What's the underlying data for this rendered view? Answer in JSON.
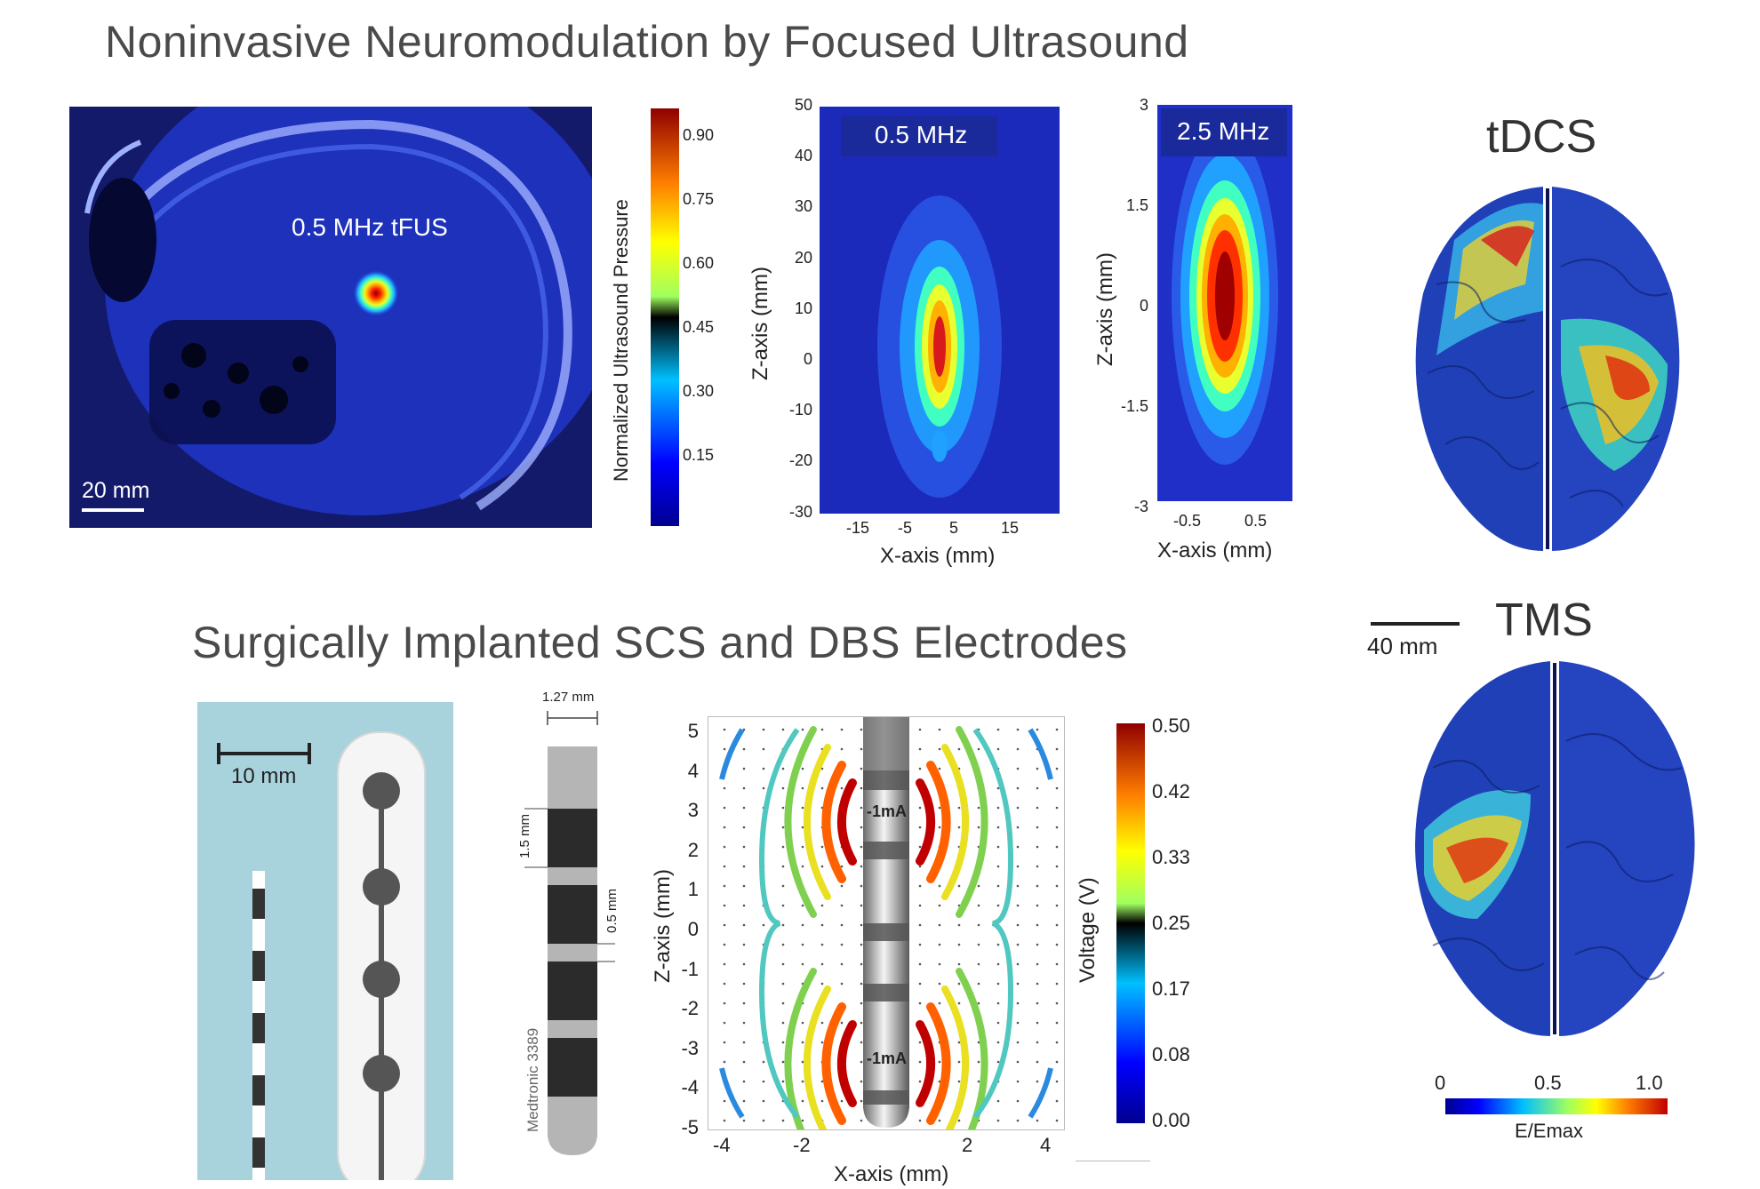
{
  "headings": {
    "top": "Noninvasive Neuromodulation by Focused Ultrasound",
    "bottom": "Surgically Implanted SCS and DBS Electrodes"
  },
  "ct_panel": {
    "label": "0.5 MHz tFUS",
    "scale": "20 mm"
  },
  "colorbar_ultrasound": {
    "label": "Normalized Ultrasound Pressure",
    "ticks": [
      "0.90",
      "0.75",
      "0.60",
      "0.45",
      "0.30",
      "0.15"
    ]
  },
  "panel_05mhz": {
    "label": "0.5 MHz",
    "yticks": [
      "50",
      "40",
      "30",
      "20",
      "10",
      "0",
      "-10",
      "-20",
      "-30"
    ],
    "xticks": [
      "-15",
      "-5",
      "5",
      "15"
    ],
    "xlabel": "X-axis (mm)",
    "ylabel": "Z-axis (mm)"
  },
  "panel_25mhz": {
    "label": "2.5 MHz",
    "yticks": [
      "3",
      "1.5",
      "0",
      "-1.5",
      "-3"
    ],
    "xticks": [
      "-0.5",
      "0.5"
    ],
    "xlabel": "X-axis (mm)",
    "ylabel": "Z-axis (mm)"
  },
  "brains": {
    "tdcs": "tDCS",
    "tms": "TMS",
    "scale": "40 mm",
    "colorbar": {
      "ticks": [
        "0",
        "0.5",
        "1.0"
      ],
      "label": "E/Emax"
    }
  },
  "scs": {
    "scale": "10 mm"
  },
  "dbs_lead": {
    "width": "1.27 mm",
    "contact": "1.5 mm",
    "spacing": "0.5 mm",
    "model": "Medtronic 3389"
  },
  "voltage_panel": {
    "yticks": [
      "5",
      "4",
      "3",
      "2",
      "1",
      "0",
      "-1",
      "-2",
      "-3",
      "-4",
      "-5"
    ],
    "xticks": [
      "-4",
      "-2",
      "2",
      "4"
    ],
    "xlabel": "X-axis (mm)",
    "ylabel": "Z-axis (mm)",
    "current_top": "-1mA",
    "current_bottom": "-1mA"
  },
  "colorbar_voltage": {
    "label": "Voltage (V)",
    "ticks": [
      "0.50",
      "0.42",
      "0.33",
      "0.25",
      "0.17",
      "0.08",
      "0.00"
    ]
  },
  "colors": {
    "jet_dark": "#00008f",
    "jet_blue": "#1f3fd1",
    "accent_red": "#d7191c",
    "ct_bg": "#12125a"
  }
}
